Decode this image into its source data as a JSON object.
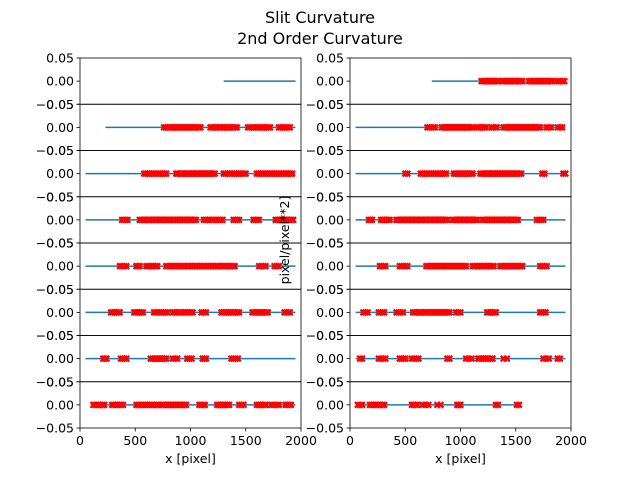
{
  "figure": {
    "title_line1": "Slit Curvature",
    "title_line2": "2nd Order Curvature"
  },
  "chart_data": {
    "type": "scatter",
    "xlabel": "x [pixel]",
    "ylabel": "pixel/pixel**2]",
    "xlim": [
      0,
      2000
    ],
    "ylim": [
      -0.05,
      0.05
    ],
    "xticks": [
      "0",
      "500",
      "1000",
      "1500",
      "2000"
    ],
    "yticks": [
      "0.05",
      "0.00",
      "−0.05"
    ],
    "line_color": "#1f77b4",
    "marker_color": "#ff0000",
    "grid": false,
    "columns": [
      {
        "name": "left",
        "panels": [
          {
            "fit_x": [
              1300,
              1950
            ],
            "points": []
          },
          {
            "fit_x": [
              230,
              1950
            ],
            "points": [
              {
                "start": 760,
                "end": 1090,
                "count": 22
              },
              {
                "start": 1180,
                "end": 1420,
                "count": 16
              },
              {
                "start": 1520,
                "end": 1720,
                "count": 13
              },
              {
                "start": 1800,
                "end": 1900,
                "count": 7
              }
            ]
          },
          {
            "fit_x": [
              50,
              1950
            ],
            "points": [
              {
                "start": 580,
                "end": 780,
                "count": 13
              },
              {
                "start": 870,
                "end": 1220,
                "count": 24
              },
              {
                "start": 1300,
                "end": 1500,
                "count": 13
              },
              {
                "start": 1600,
                "end": 1920,
                "count": 21
              }
            ]
          },
          {
            "fit_x": [
              50,
              1950
            ],
            "points": [
              {
                "start": 380,
                "end": 430,
                "count": 4
              },
              {
                "start": 540,
                "end": 1050,
                "count": 34
              },
              {
                "start": 1120,
                "end": 1290,
                "count": 11
              },
              {
                "start": 1390,
                "end": 1440,
                "count": 4
              },
              {
                "start": 1570,
                "end": 1620,
                "count": 4
              },
              {
                "start": 1770,
                "end": 1930,
                "count": 11
              }
            ]
          },
          {
            "fit_x": [
              50,
              1950
            ],
            "points": [
              {
                "start": 360,
                "end": 420,
                "count": 4
              },
              {
                "start": 510,
                "end": 540,
                "count": 3
              },
              {
                "start": 600,
                "end": 700,
                "count": 7
              },
              {
                "start": 780,
                "end": 1400,
                "count": 40
              },
              {
                "start": 1620,
                "end": 1680,
                "count": 4
              },
              {
                "start": 1760,
                "end": 1800,
                "count": 3
              }
            ]
          },
          {
            "fit_x": [
              50,
              1950
            ],
            "points": [
              {
                "start": 280,
                "end": 360,
                "count": 6
              },
              {
                "start": 490,
                "end": 570,
                "count": 6
              },
              {
                "start": 670,
                "end": 790,
                "count": 8
              },
              {
                "start": 840,
                "end": 1020,
                "count": 12
              },
              {
                "start": 1100,
                "end": 1140,
                "count": 3
              },
              {
                "start": 1280,
                "end": 1440,
                "count": 11
              },
              {
                "start": 1560,
                "end": 1700,
                "count": 10
              },
              {
                "start": 1850,
                "end": 1900,
                "count": 4
              }
            ]
          },
          {
            "fit_x": [
              50,
              1950
            ],
            "points": [
              {
                "start": 210,
                "end": 240,
                "count": 3
              },
              {
                "start": 370,
                "end": 420,
                "count": 4
              },
              {
                "start": 640,
                "end": 780,
                "count": 10
              },
              {
                "start": 840,
                "end": 880,
                "count": 3
              },
              {
                "start": 970,
                "end": 1010,
                "count": 3
              },
              {
                "start": 1110,
                "end": 1140,
                "count": 3
              },
              {
                "start": 1370,
                "end": 1430,
                "count": 4
              }
            ]
          },
          {
            "fit_x": [
              100,
              1950
            ],
            "points": [
              {
                "start": 120,
                "end": 220,
                "count": 7
              },
              {
                "start": 290,
                "end": 390,
                "count": 7
              },
              {
                "start": 510,
                "end": 710,
                "count": 13
              },
              {
                "start": 740,
                "end": 960,
                "count": 15
              },
              {
                "start": 1080,
                "end": 1130,
                "count": 4
              },
              {
                "start": 1240,
                "end": 1350,
                "count": 8
              },
              {
                "start": 1440,
                "end": 1480,
                "count": 3
              },
              {
                "start": 1600,
                "end": 1680,
                "count": 6
              },
              {
                "start": 1730,
                "end": 1800,
                "count": 5
              },
              {
                "start": 1860,
                "end": 1910,
                "count": 4
              }
            ]
          }
        ]
      },
      {
        "name": "right",
        "panels": [
          {
            "fit_x": [
              740,
              1950
            ],
            "points": [
              {
                "start": 1190,
                "end": 1340,
                "count": 11
              },
              {
                "start": 1380,
                "end": 1560,
                "count": 13
              },
              {
                "start": 1620,
                "end": 1830,
                "count": 15
              },
              {
                "start": 1870,
                "end": 1940,
                "count": 5
              }
            ]
          },
          {
            "fit_x": [
              50,
              1950
            ],
            "points": [
              {
                "start": 700,
                "end": 770,
                "count": 5
              },
              {
                "start": 830,
                "end": 1110,
                "count": 20
              },
              {
                "start": 1150,
                "end": 1230,
                "count": 6
              },
              {
                "start": 1280,
                "end": 1330,
                "count": 4
              },
              {
                "start": 1390,
                "end": 1720,
                "count": 23
              },
              {
                "start": 1780,
                "end": 1820,
                "count": 3
              },
              {
                "start": 1880,
                "end": 1920,
                "count": 3
              }
            ]
          },
          {
            "fit_x": [
              50,
              1950
            ],
            "points": [
              {
                "start": 500,
                "end": 520,
                "count": 2
              },
              {
                "start": 640,
                "end": 870,
                "count": 15
              },
              {
                "start": 940,
                "end": 1110,
                "count": 12
              },
              {
                "start": 1180,
                "end": 1550,
                "count": 25
              },
              {
                "start": 1740,
                "end": 1760,
                "count": 2
              },
              {
                "start": 1930,
                "end": 1950,
                "count": 2
              }
            ]
          },
          {
            "fit_x": [
              50,
              1950
            ],
            "points": [
              {
                "start": 170,
                "end": 200,
                "count": 3
              },
              {
                "start": 280,
                "end": 360,
                "count": 6
              },
              {
                "start": 420,
                "end": 880,
                "count": 32
              },
              {
                "start": 930,
                "end": 1150,
                "count": 16
              },
              {
                "start": 1200,
                "end": 1520,
                "count": 22
              },
              {
                "start": 1690,
                "end": 1750,
                "count": 4
              }
            ]
          },
          {
            "fit_x": [
              50,
              1950
            ],
            "points": [
              {
                "start": 270,
                "end": 320,
                "count": 4
              },
              {
                "start": 450,
                "end": 520,
                "count": 5
              },
              {
                "start": 690,
                "end": 1050,
                "count": 25
              },
              {
                "start": 1110,
                "end": 1300,
                "count": 13
              },
              {
                "start": 1360,
                "end": 1560,
                "count": 14
              },
              {
                "start": 1720,
                "end": 1780,
                "count": 4
              }
            ]
          },
          {
            "fit_x": [
              50,
              1950
            ],
            "points": [
              {
                "start": 120,
                "end": 160,
                "count": 3
              },
              {
                "start": 260,
                "end": 310,
                "count": 4
              },
              {
                "start": 420,
                "end": 480,
                "count": 4
              },
              {
                "start": 570,
                "end": 760,
                "count": 13
              },
              {
                "start": 760,
                "end": 900,
                "count": 10
              },
              {
                "start": 960,
                "end": 1000,
                "count": 3
              },
              {
                "start": 1240,
                "end": 1320,
                "count": 6
              },
              {
                "start": 1720,
                "end": 1770,
                "count": 4
              }
            ]
          },
          {
            "fit_x": [
              50,
              1950
            ],
            "points": [
              {
                "start": 90,
                "end": 110,
                "count": 2
              },
              {
                "start": 260,
                "end": 320,
                "count": 4
              },
              {
                "start": 450,
                "end": 500,
                "count": 4
              },
              {
                "start": 560,
                "end": 620,
                "count": 4
              },
              {
                "start": 880,
                "end": 900,
                "count": 2
              },
              {
                "start": 1050,
                "end": 1100,
                "count": 3
              },
              {
                "start": 1160,
                "end": 1290,
                "count": 9
              },
              {
                "start": 1390,
                "end": 1420,
                "count": 2
              },
              {
                "start": 1750,
                "end": 1800,
                "count": 3
              },
              {
                "start": 1880,
                "end": 1900,
                "count": 2
              }
            ]
          },
          {
            "fit_x": [
              50,
              1550
            ],
            "points": [
              {
                "start": 70,
                "end": 110,
                "count": 3
              },
              {
                "start": 180,
                "end": 310,
                "count": 9
              },
              {
                "start": 560,
                "end": 610,
                "count": 4
              },
              {
                "start": 660,
                "end": 710,
                "count": 3
              },
              {
                "start": 790,
                "end": 820,
                "count": 2
              },
              {
                "start": 970,
                "end": 1000,
                "count": 3
              },
              {
                "start": 1320,
                "end": 1340,
                "count": 2
              },
              {
                "start": 1510,
                "end": 1530,
                "count": 2
              }
            ]
          }
        ]
      }
    ]
  }
}
